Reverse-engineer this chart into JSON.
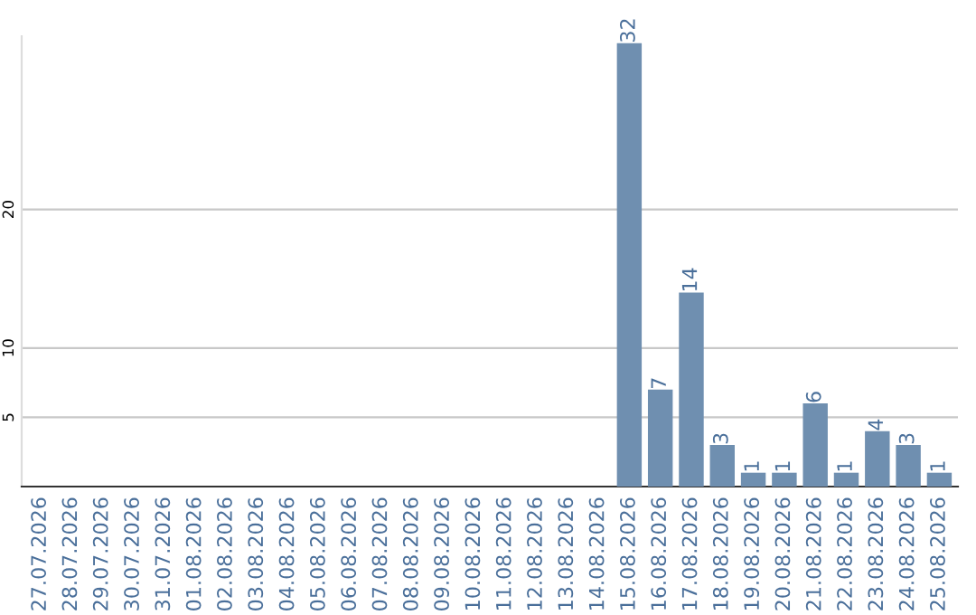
{
  "chart_data": {
    "type": "bar",
    "categories": [
      "27.07.2026",
      "28.07.2026",
      "29.07.2026",
      "30.07.2026",
      "31.07.2026",
      "01.08.2026",
      "02.08.2026",
      "03.08.2026",
      "04.08.2026",
      "05.08.2026",
      "06.08.2026",
      "07.08.2026",
      "08.08.2026",
      "09.08.2026",
      "10.08.2026",
      "11.08.2026",
      "12.08.2026",
      "13.08.2026",
      "14.08.2026",
      "15.08.2026",
      "16.08.2026",
      "17.08.2026",
      "18.08.2026",
      "19.08.2026",
      "20.08.2026",
      "21.08.2026",
      "22.08.2026",
      "23.08.2026",
      "24.08.2026",
      "25.08.2026"
    ],
    "values": [
      0,
      0,
      0,
      0,
      0,
      0,
      0,
      0,
      0,
      0,
      0,
      0,
      0,
      0,
      0,
      0,
      0,
      0,
      0,
      32,
      7,
      14,
      3,
      1,
      1,
      6,
      1,
      4,
      3,
      1
    ],
    "value_labels": [
      null,
      null,
      null,
      null,
      null,
      null,
      null,
      null,
      null,
      null,
      null,
      null,
      null,
      null,
      null,
      null,
      null,
      null,
      null,
      "32",
      "7",
      "14",
      "3",
      "1",
      "1",
      "6",
      "1",
      "4",
      "3",
      "1"
    ],
    "color": "#6f8fb0",
    "ylim": [
      0,
      32.5
    ],
    "yticks": [
      5,
      10,
      20
    ],
    "grid": "y"
  }
}
